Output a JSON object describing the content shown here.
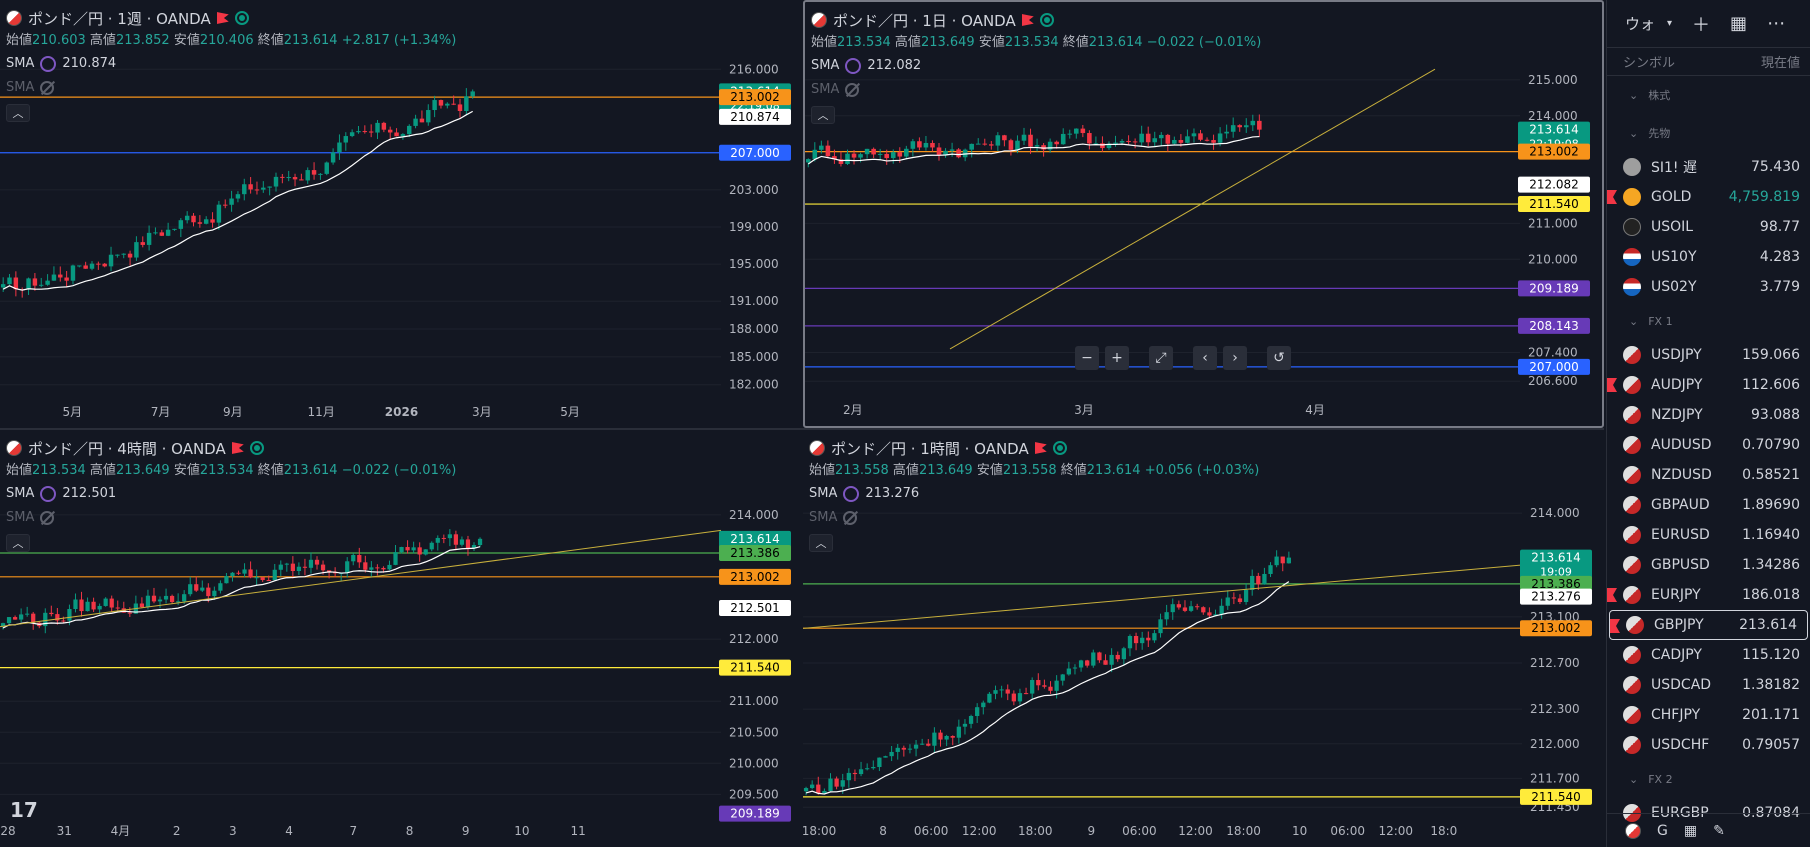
{
  "panes": [
    {
      "id": "p1",
      "title": "ポンド／円 · 1週 · OANDA",
      "ohlc": {
        "open_label": "始値",
        "open": "210.603",
        "high_label": "高値",
        "high": "213.852",
        "low_label": "安値",
        "low": "210.406",
        "close_label": "終値",
        "close": "213.614",
        "change": "+2.817 (+1.34%)"
      },
      "sma1_label": "SMA",
      "sma1_value": "210.874",
      "sma2_label": "SMA",
      "yaxis": {
        "min": 181,
        "max": 217,
        "ticks": [
          "216.000",
          "203.000",
          "199.000",
          "195.000",
          "191.000",
          "188.000",
          "185.000",
          "182.000"
        ],
        "tick_values": [
          216,
          203,
          199,
          195,
          191,
          188,
          185,
          182
        ]
      },
      "xaxis": {
        "labels": [
          "5月",
          "7月",
          "9月",
          "11月",
          "2026",
          "3月",
          "5月"
        ],
        "positions": [
          0.09,
          0.2,
          0.29,
          0.4,
          0.5,
          0.6,
          0.71
        ]
      },
      "price_tags": [
        {
          "value": 213.614,
          "text": "213.614",
          "sub": "22:19:08",
          "color": "#089981",
          "fg": "#ffffff"
        },
        {
          "value": 213.002,
          "text": "213.002",
          "color": "#f7931a",
          "fg": "#000000"
        },
        {
          "value": 210.874,
          "text": "210.874",
          "color": "#ffffff",
          "fg": "#000000"
        },
        {
          "value": 207.0,
          "text": "207.000",
          "color": "#2962ff",
          "fg": "#ffffff"
        }
      ],
      "hlines": [
        {
          "value": 213.002,
          "color": "#f7931a"
        },
        {
          "value": 207.0,
          "color": "#2962ff"
        }
      ]
    },
    {
      "id": "p2",
      "title": "ポンド／円 · 1日 · OANDA",
      "ohlc": {
        "open_label": "始値",
        "open": "213.534",
        "high_label": "高値",
        "high": "213.649",
        "low_label": "安値",
        "low": "213.534",
        "close_label": "終値",
        "close": "213.614",
        "change": "−0.022 (−0.01%)"
      },
      "sma1_label": "SMA",
      "sma1_value": "212.082",
      "sma2_label": "SMA",
      "yaxis": {
        "min": 206.3,
        "max": 215.5,
        "ticks": [
          "215.000",
          "214.000",
          "211.000",
          "210.000",
          "207.400",
          "206.600"
        ],
        "tick_values": [
          215,
          214,
          211,
          210,
          207.4,
          206.6
        ]
      },
      "xaxis": {
        "labels": [
          "2月",
          "3月",
          "4月"
        ],
        "positions": [
          0.06,
          0.35,
          0.64
        ]
      },
      "price_tags": [
        {
          "value": 213.614,
          "text": "213.614",
          "sub": "22:19:08",
          "color": "#089981",
          "fg": "#ffffff"
        },
        {
          "value": 213.002,
          "text": "213.002",
          "color": "#f7931a",
          "fg": "#000000"
        },
        {
          "value": 212.082,
          "text": "212.082",
          "color": "#ffffff",
          "fg": "#000000"
        },
        {
          "value": 211.54,
          "text": "211.540",
          "color": "#ffeb3b",
          "fg": "#000000"
        },
        {
          "value": 209.189,
          "text": "209.189",
          "color": "#673ab7",
          "fg": "#ffffff"
        },
        {
          "value": 208.143,
          "text": "208.143",
          "color": "#673ab7",
          "fg": "#ffffff"
        },
        {
          "value": 207.0,
          "text": "207.000",
          "color": "#2962ff",
          "fg": "#ffffff"
        }
      ],
      "hlines": [
        {
          "value": 213.002,
          "color": "#f7931a"
        },
        {
          "value": 211.54,
          "color": "#ffeb3b"
        },
        {
          "value": 209.189,
          "color": "#673ab7"
        },
        {
          "value": 208.143,
          "color": "#673ab7"
        },
        {
          "value": 207.0,
          "color": "#2962ff"
        }
      ]
    },
    {
      "id": "p3",
      "title": "ポンド／円 · 4時間 · OANDA",
      "ohlc": {
        "open_label": "始値",
        "open": "213.534",
        "high_label": "高値",
        "high": "213.649",
        "low_label": "安値",
        "low": "213.534",
        "close_label": "終値",
        "close": "213.614",
        "change": "−0.022 (−0.01%)"
      },
      "sma1_label": "SMA",
      "sma1_value": "212.501",
      "sma2_label": "SMA",
      "yaxis": {
        "min": 209.2,
        "max": 214.4,
        "ticks": [
          "214.000",
          "212.000",
          "211.000",
          "210.500",
          "210.000",
          "209.500"
        ],
        "tick_values": [
          214,
          212,
          211,
          210.5,
          210,
          209.5
        ]
      },
      "xaxis": {
        "labels": [
          "28",
          "31",
          "4月",
          "2",
          "3",
          "4",
          "7",
          "8",
          "9",
          "10",
          "11"
        ],
        "positions": [
          0.01,
          0.08,
          0.15,
          0.22,
          0.29,
          0.36,
          0.44,
          0.51,
          0.58,
          0.65,
          0.72
        ]
      },
      "price_tags": [
        {
          "value": 213.614,
          "text": "213.614",
          "sub": "02:19:09",
          "color": "#089981",
          "fg": "#ffffff"
        },
        {
          "value": 213.386,
          "text": "213.386",
          "color": "#4caf50",
          "fg": "#000000"
        },
        {
          "value": 213.002,
          "text": "213.002",
          "color": "#f7931a",
          "fg": "#000000"
        },
        {
          "value": 212.501,
          "text": "212.501",
          "color": "#ffffff",
          "fg": "#000000"
        },
        {
          "value": 211.54,
          "text": "211.540",
          "color": "#ffeb3b",
          "fg": "#000000"
        },
        {
          "value": 209.189,
          "text": "209.189",
          "color": "#673ab7",
          "fg": "#ffffff"
        }
      ],
      "hlines": [
        {
          "value": 213.386,
          "color": "#4caf50"
        },
        {
          "value": 213.002,
          "color": "#f7931a"
        },
        {
          "value": 211.54,
          "color": "#ffeb3b"
        }
      ]
    },
    {
      "id": "p4",
      "title": "ポンド／円 · 1時間 · OANDA",
      "ohlc": {
        "open_label": "始値",
        "open": "213.558",
        "high_label": "高値",
        "high": "213.649",
        "low_label": "安値",
        "low": "213.558",
        "close_label": "終値",
        "close": "213.614",
        "change": "+0.056 (+0.03%)"
      },
      "sma1_label": "SMA",
      "sma1_value": "213.276",
      "sma2_label": "SMA",
      "yaxis": {
        "min": 211.4,
        "max": 214.2,
        "ticks": [
          "214.000",
          "213.100",
          "212.700",
          "212.300",
          "212.000",
          "211.700",
          "211.450"
        ],
        "tick_values": [
          214,
          213.1,
          212.7,
          212.3,
          212,
          211.7,
          211.45
        ]
      },
      "xaxis": {
        "labels": [
          "18:00",
          "8",
          "06:00",
          "12:00",
          "18:00",
          "9",
          "06:00",
          "12:00",
          "18:00",
          "10",
          "06:00",
          "12:00",
          "18:0"
        ],
        "positions": [
          0.02,
          0.1,
          0.16,
          0.22,
          0.29,
          0.36,
          0.42,
          0.49,
          0.55,
          0.62,
          0.68,
          0.74,
          0.8
        ]
      },
      "price_tags": [
        {
          "value": 213.614,
          "text": "213.614",
          "sub": "19:09",
          "color": "#089981",
          "fg": "#ffffff"
        },
        {
          "value": 213.386,
          "text": "213.386",
          "color": "#4caf50",
          "fg": "#000000"
        },
        {
          "value": 213.276,
          "text": "213.276",
          "color": "#ffffff",
          "fg": "#000000"
        },
        {
          "value": 213.002,
          "text": "213.002",
          "color": "#f7931a",
          "fg": "#000000"
        },
        {
          "value": 211.54,
          "text": "211.540",
          "color": "#ffeb3b",
          "fg": "#000000"
        }
      ],
      "hlines": [
        {
          "value": 213.386,
          "color": "#4caf50"
        },
        {
          "value": 213.002,
          "color": "#f7931a"
        },
        {
          "value": 211.54,
          "color": "#ffeb3b"
        }
      ]
    }
  ],
  "colors": {
    "up": "#089981",
    "down": "#f23645",
    "bg": "#131722",
    "grid": "#1e222d",
    "axis": "#b2b5be",
    "sma": "#ffffff",
    "trend": "#c8b03c"
  },
  "zoom_buttons": [
    "−",
    "+",
    "⤢",
    "‹",
    "›",
    "↺"
  ],
  "tv_logo": "17",
  "watchlist": {
    "title": "ウォ",
    "col_symbol": "シンボル",
    "col_price": "現在値",
    "sections": [
      {
        "name": "株式",
        "rows": []
      },
      {
        "name": "先物",
        "rows": [
          {
            "sym": "SI1!",
            "price": "75.430",
            "icon": "si",
            "badge": "遅"
          },
          {
            "sym": "GOLD",
            "price": "4,759.819",
            "icon": "gold",
            "up": true,
            "flag": true
          },
          {
            "sym": "USOIL",
            "price": "98.77",
            "icon": "oil"
          },
          {
            "sym": "US10Y",
            "price": "4.283",
            "icon": "us"
          },
          {
            "sym": "US02Y",
            "price": "3.779",
            "icon": "us"
          }
        ]
      },
      {
        "name": "FX 1",
        "rows": [
          {
            "sym": "USDJPY",
            "price": "159.066",
            "icon": "fx"
          },
          {
            "sym": "AUDJPY",
            "price": "112.606",
            "icon": "fx",
            "flag": true
          },
          {
            "sym": "NZDJPY",
            "price": "93.088",
            "icon": "fx"
          },
          {
            "sym": "AUDUSD",
            "price": "0.70790",
            "icon": "fx"
          },
          {
            "sym": "NZDUSD",
            "price": "0.58521",
            "icon": "fx"
          },
          {
            "sym": "GBPAUD",
            "price": "1.89690",
            "icon": "fx"
          },
          {
            "sym": "EURUSD",
            "price": "1.16940",
            "icon": "fx"
          },
          {
            "sym": "GBPUSD",
            "price": "1.34286",
            "icon": "fx"
          },
          {
            "sym": "EURJPY",
            "price": "186.018",
            "icon": "fx",
            "flag": true
          },
          {
            "sym": "GBPJPY",
            "price": "213.614",
            "icon": "fx",
            "sel": true,
            "flag": true
          },
          {
            "sym": "CADJPY",
            "price": "115.120",
            "icon": "fx"
          },
          {
            "sym": "USDCAD",
            "price": "1.38182",
            "icon": "fx"
          },
          {
            "sym": "CHFJPY",
            "price": "201.171",
            "icon": "fx"
          },
          {
            "sym": "USDCHF",
            "price": "0.79057",
            "icon": "fx"
          }
        ]
      },
      {
        "name": "FX 2",
        "rows": [
          {
            "sym": "EURGBP",
            "price": "0.87084",
            "icon": "fx"
          }
        ]
      }
    ],
    "bottom_label": "G"
  }
}
